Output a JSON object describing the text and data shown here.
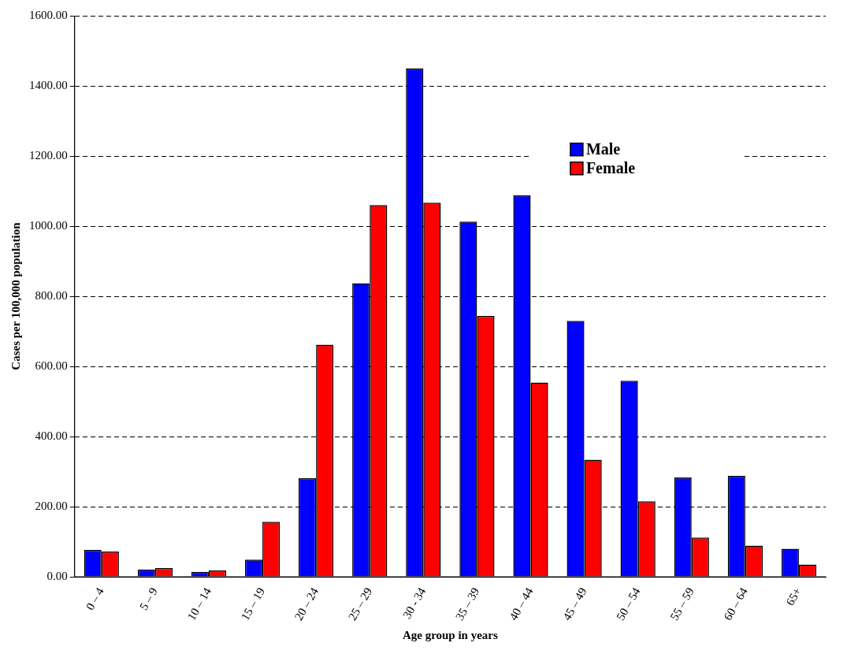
{
  "chart_data": {
    "type": "bar",
    "xlabel": "Age group in years",
    "ylabel": "Cases per 100,000 population",
    "categories": [
      "0 – 4",
      "5 – 9",
      "10 – 14",
      "15 – 19",
      "20 – 24",
      "25 – 29",
      "30 - 34",
      "35 – 39",
      "40 – 44",
      "45 – 49",
      "50 – 54",
      "55 – 59",
      "60 – 64",
      "65+"
    ],
    "series": [
      {
        "name": "Male",
        "color": "#0000ff",
        "values": [
          77,
          21,
          14,
          49,
          281,
          837,
          1450,
          1013,
          1088,
          730,
          559,
          283,
          288,
          80
        ]
      },
      {
        "name": "Female",
        "color": "#ff0000",
        "values": [
          72,
          25,
          18,
          157,
          662,
          1060,
          1067,
          744,
          554,
          334,
          215,
          112,
          89,
          35
        ]
      }
    ],
    "ylim": [
      0,
      1600
    ],
    "yticks": [
      {
        "value": 0,
        "label": "0.00"
      },
      {
        "value": 200,
        "label": "200.00"
      },
      {
        "value": 400,
        "label": "400.00"
      },
      {
        "value": 600,
        "label": "600.00"
      },
      {
        "value": 800,
        "label": "800.00"
      },
      {
        "value": 1000,
        "label": "1000.00"
      },
      {
        "value": 1200,
        "label": "1200.00"
      },
      {
        "value": 1400,
        "label": "1400.00"
      },
      {
        "value": 1600,
        "label": "1600.00"
      }
    ],
    "grid": "y",
    "legend": "top right"
  }
}
